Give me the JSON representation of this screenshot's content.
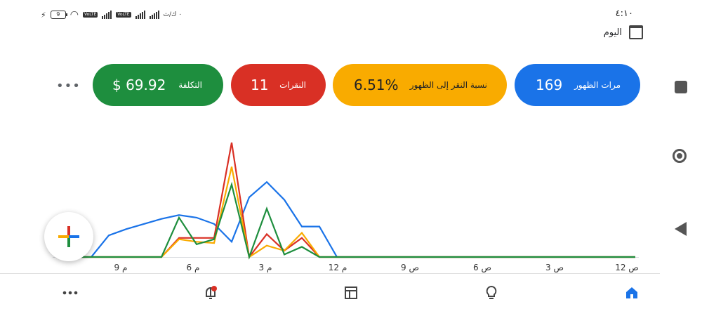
{
  "status_bar": {
    "time": "٤:١٠",
    "battery": "9",
    "network_label": "VoLTE",
    "speed": "٠ ك/ث"
  },
  "date_filter": {
    "label": "اليوم"
  },
  "metrics": [
    {
      "label": "مرات الظهور",
      "value": "169",
      "color": "#1a73e8"
    },
    {
      "label": "نسبة النقر إلى الظهور",
      "value": "6.51%",
      "color": "#f9ab00"
    },
    {
      "label": "النقرات",
      "value": "11",
      "color": "#d93025"
    },
    {
      "label": "التكلفة",
      "value": "$ 69.92",
      "color": "#1e8e3e"
    }
  ],
  "more_menu": "•••",
  "chart_data": {
    "type": "line",
    "x_ticks": [
      "12 ص",
      "3 ص",
      "6 ص",
      "9 ص",
      "12 م",
      "3 م",
      "6 م",
      "9 م"
    ],
    "x_direction": "right-to-left",
    "grid": false,
    "series": [
      {
        "color": "#1a73e8",
        "values": [
          0,
          0,
          0,
          0,
          0,
          0,
          0,
          0,
          0,
          0,
          0,
          0,
          0,
          0,
          0,
          0,
          0,
          0,
          0.24,
          0.24,
          0.45,
          0.59,
          0.47,
          0.12,
          0.26,
          0.31,
          0.33,
          0.3,
          0.26,
          0.22,
          0.17,
          0,
          0,
          0
        ]
      },
      {
        "color": "#d93025",
        "values": [
          0,
          0,
          0,
          0,
          0,
          0,
          0,
          0,
          0,
          0,
          0,
          0,
          0,
          0,
          0,
          0,
          0,
          0,
          0,
          0.15,
          0.05,
          0.18,
          0,
          0.9,
          0.15,
          0.15,
          0.15,
          0,
          0,
          0,
          0,
          0,
          0,
          0
        ]
      },
      {
        "color": "#f9ab00",
        "values": [
          0,
          0,
          0,
          0,
          0,
          0,
          0,
          0,
          0,
          0,
          0,
          0,
          0,
          0,
          0,
          0,
          0,
          0,
          0,
          0.19,
          0.05,
          0.09,
          0,
          0.71,
          0.11,
          0.12,
          0.14,
          0,
          0,
          0,
          0,
          0,
          0,
          0
        ]
      },
      {
        "color": "#1e8e3e",
        "values": [
          0,
          0,
          0,
          0,
          0,
          0,
          0,
          0,
          0,
          0,
          0,
          0,
          0,
          0,
          0,
          0,
          0,
          0,
          0,
          0.08,
          0.02,
          0.38,
          0,
          0.57,
          0.14,
          0.1,
          0.31,
          0,
          0,
          0,
          0,
          0,
          0,
          0
        ]
      }
    ]
  },
  "bottom_nav": {
    "items": [
      "home-icon",
      "lightbulb-icon",
      "table-icon",
      "notifications-icon",
      "more-icon"
    ],
    "active_color": "#1a73e8"
  }
}
